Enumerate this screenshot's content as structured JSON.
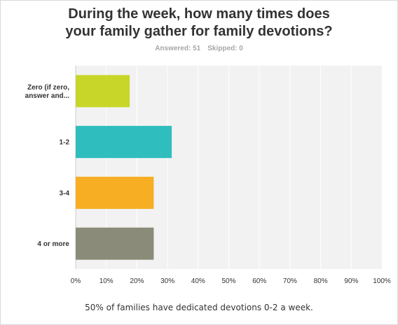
{
  "title_lines": [
    "During the week, how many times does",
    "your family gather for family devotions?"
  ],
  "stats": {
    "answered": "Answered: 51",
    "skipped": "Skipped: 0"
  },
  "footnote": "50% of families have dedicated devotions 0-2 a week.",
  "colors": {
    "plot_bg": "#f2f2f2",
    "grid": "#ffffff",
    "bars": [
      "#c8d62a",
      "#2fbdbd",
      "#f7ae23",
      "#8a8b78"
    ]
  },
  "chart_data": {
    "type": "bar",
    "orientation": "horizontal",
    "title": "During the week, how many times does your family gather for family devotions?",
    "categories": [
      "Zero (if zero, answer and...",
      "1-2",
      "3-4",
      "4 or more"
    ],
    "values": [
      17.65,
      31.37,
      25.49,
      25.49
    ],
    "xlim": [
      0,
      100
    ],
    "xticks": [
      "0%",
      "10%",
      "20%",
      "30%",
      "40%",
      "50%",
      "60%",
      "70%",
      "80%",
      "90%",
      "100%"
    ],
    "grid": true,
    "legend": "none"
  }
}
